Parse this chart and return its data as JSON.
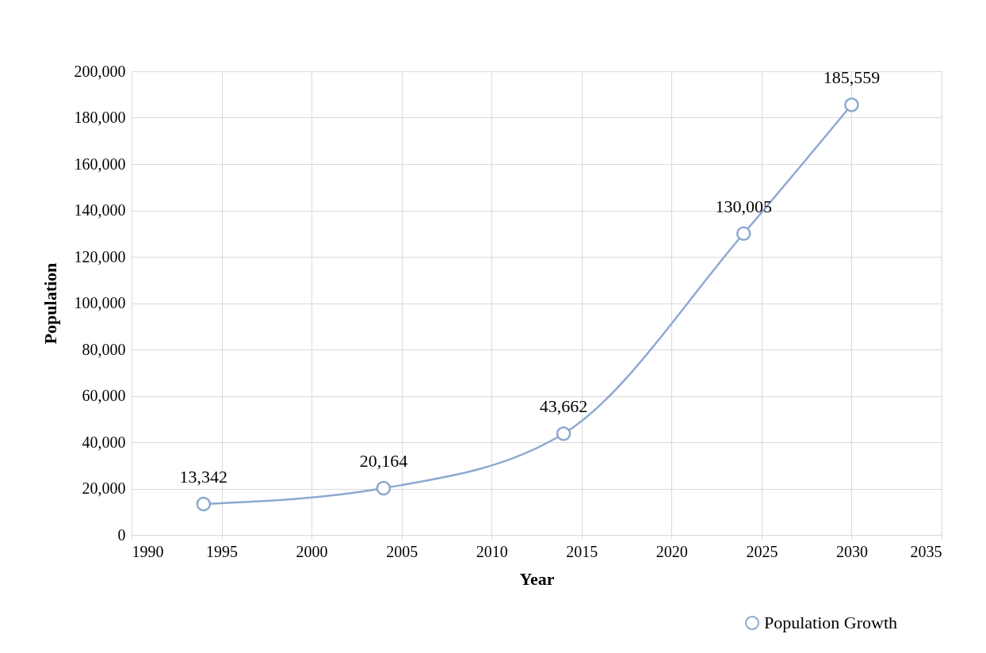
{
  "chart_data": {
    "type": "line",
    "xlabel": "Year",
    "ylabel": "Population",
    "x": [
      1994,
      2004,
      2014,
      2024,
      2030
    ],
    "series": [
      {
        "name": "Population Growth",
        "color": "#8ea9d0",
        "values": [
          13342,
          20164,
          43662,
          130005,
          185559
        ],
        "value_labels": [
          "13,342",
          "20,164",
          "43,662",
          "130,005",
          "185,559"
        ]
      }
    ],
    "xlim": [
      1990,
      2035
    ],
    "xticks": [
      1990,
      1995,
      2000,
      2005,
      2010,
      2015,
      2020,
      2025,
      2030,
      2035
    ],
    "ylim": [
      0,
      200000
    ],
    "yticks": [
      0,
      {
        "value": 20000,
        "label": "20,000"
      },
      {
        "value": 40000,
        "label": "40,000"
      },
      {
        "value": 60000,
        "label": "60,000"
      },
      {
        "value": 80000,
        "label": "80,000"
      },
      {
        "value": 100000,
        "label": "100,000"
      },
      {
        "value": 120000,
        "label": "120,000"
      },
      {
        "value": 140000,
        "label": "140,000"
      },
      {
        "value": 160000,
        "label": "160,000"
      },
      {
        "value": 180000,
        "label": "180,000"
      },
      {
        "value": 200000,
        "label": "200,000"
      }
    ],
    "grid": true,
    "legend": "bottom right",
    "marker": "circle",
    "line_style": "solid",
    "data_labels": true
  }
}
